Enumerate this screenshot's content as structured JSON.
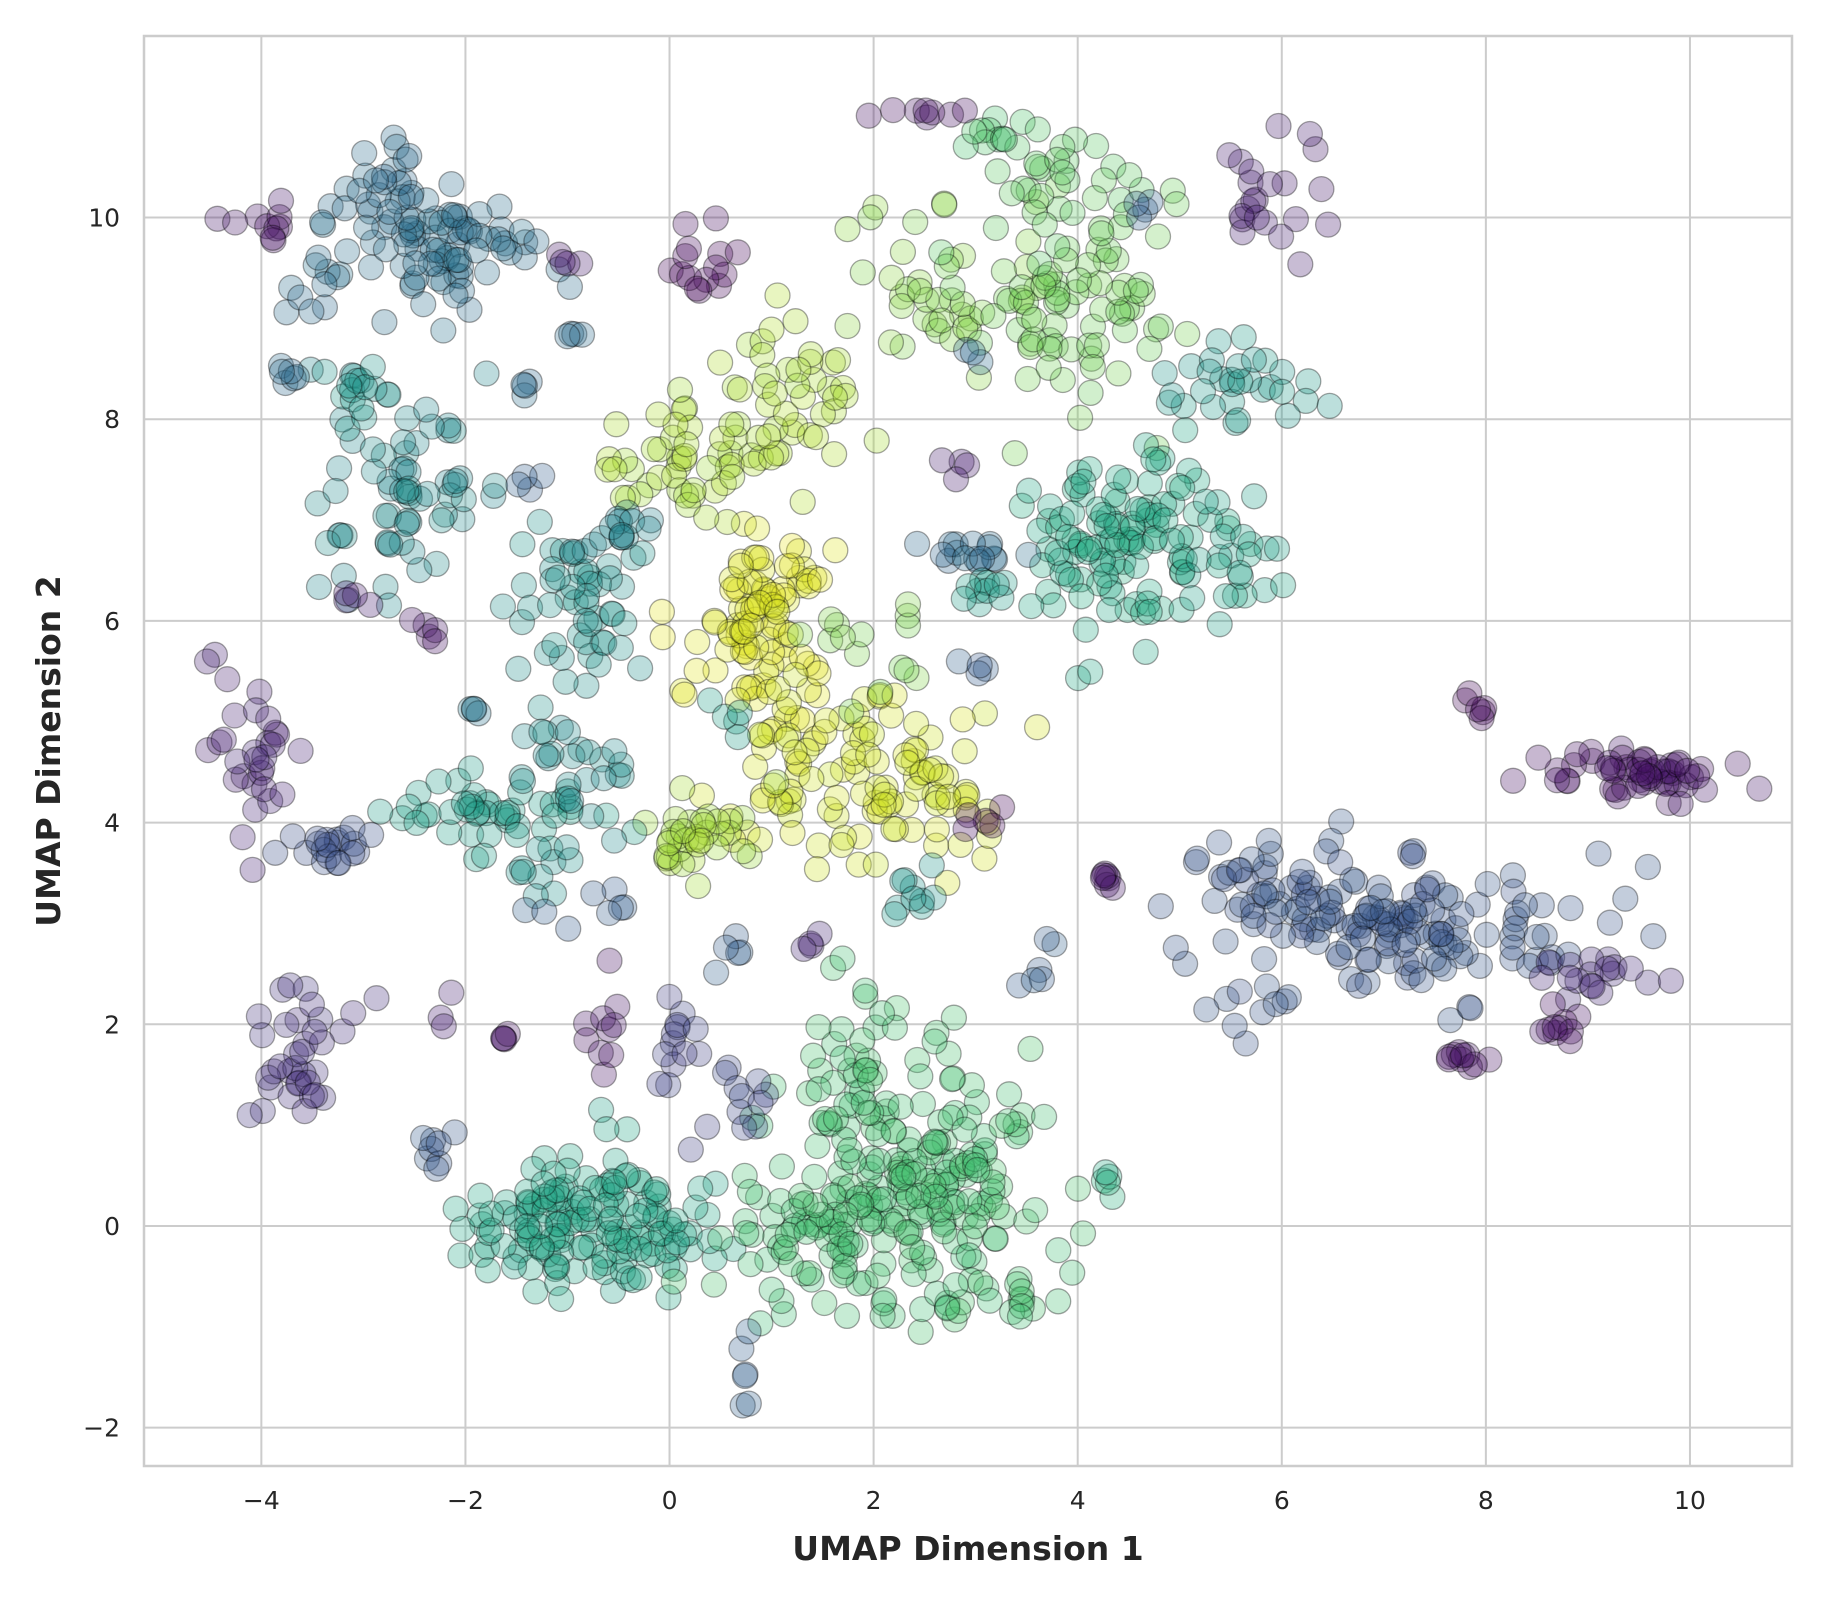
{
  "chart_data": {
    "type": "scatter",
    "title": "",
    "xlabel": "UMAP Dimension 1",
    "ylabel": "UMAP Dimension 2",
    "xlim": [
      -5.15,
      11.0
    ],
    "ylim": [
      -2.38,
      11.8
    ],
    "xticks": [
      -4,
      -2,
      0,
      2,
      4,
      6,
      8,
      10
    ],
    "yticks": [
      -2,
      0,
      2,
      4,
      6,
      8,
      10
    ],
    "xtick_labels": [
      "−4",
      "−2",
      "0",
      "2",
      "4",
      "6",
      "8",
      "10"
    ],
    "ytick_labels": [
      "−2",
      "0",
      "2",
      "4",
      "6",
      "8",
      "10"
    ],
    "grid": true,
    "legend": false,
    "colormap": "viridis",
    "point_style": {
      "alpha": 0.3,
      "edgecolor": "#000000"
    },
    "clusters": [
      {
        "cx": -0.9,
        "cy": 0.05,
        "sx": 0.55,
        "sy": 0.38,
        "n": 130,
        "c": 0.58
      },
      {
        "cx": -0.05,
        "cy": 0.1,
        "sx": 0.35,
        "sy": 0.3,
        "n": 25,
        "c": 0.58
      },
      {
        "cx": 2.6,
        "cy": 0.5,
        "sx": 0.55,
        "sy": 0.6,
        "n": 180,
        "c": 0.7
      },
      {
        "cx": 1.3,
        "cy": -0.15,
        "sx": 0.5,
        "sy": 0.35,
        "n": 70,
        "c": 0.7
      },
      {
        "cx": 1.8,
        "cy": 1.6,
        "sx": 0.25,
        "sy": 0.35,
        "n": 30,
        "c": 0.7
      },
      {
        "cx": 3.2,
        "cy": -0.7,
        "sx": 0.3,
        "sy": 0.15,
        "n": 15,
        "c": 0.7
      },
      {
        "cx": 4.2,
        "cy": 0.4,
        "sx": 0.1,
        "sy": 0.1,
        "n": 5,
        "c": 0.62
      },
      {
        "cx": 7.1,
        "cy": 3.0,
        "sx": 0.8,
        "sy": 0.35,
        "n": 140,
        "c": 0.27
      },
      {
        "cx": 5.8,
        "cy": 3.4,
        "sx": 0.4,
        "sy": 0.2,
        "n": 25,
        "c": 0.27
      },
      {
        "cx": 5.7,
        "cy": 2.2,
        "sx": 0.2,
        "sy": 0.25,
        "n": 10,
        "c": 0.27
      },
      {
        "cx": 9.4,
        "cy": 4.5,
        "sx": 0.55,
        "sy": 0.12,
        "n": 55,
        "c": 0.05
      },
      {
        "cx": 7.9,
        "cy": 5.1,
        "sx": 0.07,
        "sy": 0.12,
        "n": 6,
        "c": 0.02
      },
      {
        "cx": 9.2,
        "cy": 2.45,
        "sx": 0.35,
        "sy": 0.12,
        "n": 18,
        "c": 0.12
      },
      {
        "cx": 8.8,
        "cy": 2.0,
        "sx": 0.12,
        "sy": 0.12,
        "n": 10,
        "c": 0.05
      },
      {
        "cx": 7.7,
        "cy": 1.65,
        "sx": 0.18,
        "sy": 0.06,
        "n": 10,
        "c": 0.05
      },
      {
        "cx": 0.9,
        "cy": 6.0,
        "sx": 0.35,
        "sy": 0.55,
        "n": 100,
        "c": 0.95
      },
      {
        "cx": 1.9,
        "cy": 4.5,
        "sx": 0.75,
        "sy": 0.45,
        "n": 110,
        "c": 0.93
      },
      {
        "cx": 0.3,
        "cy": 3.8,
        "sx": 0.3,
        "sy": 0.25,
        "n": 35,
        "c": 0.86
      },
      {
        "cx": 0.2,
        "cy": 7.6,
        "sx": 0.35,
        "sy": 0.3,
        "n": 45,
        "c": 0.87
      },
      {
        "cx": 1.2,
        "cy": 8.3,
        "sx": 0.35,
        "sy": 0.45,
        "n": 45,
        "c": 0.87
      },
      {
        "cx": 2.6,
        "cy": 9.2,
        "sx": 0.55,
        "sy": 0.4,
        "n": 40,
        "c": 0.82
      },
      {
        "cx": 4.0,
        "cy": 9.0,
        "sx": 0.55,
        "sy": 0.5,
        "n": 75,
        "c": 0.78
      },
      {
        "cx": 3.7,
        "cy": 10.3,
        "sx": 0.35,
        "sy": 0.35,
        "n": 30,
        "c": 0.75
      },
      {
        "cx": 3.3,
        "cy": 10.85,
        "sx": 0.2,
        "sy": 0.1,
        "n": 12,
        "c": 0.72
      },
      {
        "cx": 4.4,
        "cy": 6.8,
        "sx": 0.45,
        "sy": 0.45,
        "n": 110,
        "c": 0.6
      },
      {
        "cx": 5.4,
        "cy": 6.6,
        "sx": 0.35,
        "sy": 0.3,
        "n": 25,
        "c": 0.57
      },
      {
        "cx": 5.6,
        "cy": 8.3,
        "sx": 0.35,
        "sy": 0.25,
        "n": 30,
        "c": 0.53
      },
      {
        "cx": 2.9,
        "cy": 6.7,
        "sx": 0.35,
        "sy": 0.08,
        "n": 16,
        "c": 0.35
      },
      {
        "cx": 2.35,
        "cy": 3.2,
        "sx": 0.12,
        "sy": 0.15,
        "n": 10,
        "c": 0.52
      },
      {
        "cx": 1.9,
        "cy": 5.8,
        "sx": 0.3,
        "sy": 0.25,
        "n": 15,
        "c": 0.8
      },
      {
        "cx": -2.3,
        "cy": 9.7,
        "sx": 0.55,
        "sy": 0.35,
        "n": 85,
        "c": 0.37
      },
      {
        "cx": -2.8,
        "cy": 10.3,
        "sx": 0.2,
        "sy": 0.2,
        "n": 20,
        "c": 0.35
      },
      {
        "cx": -2.6,
        "cy": 7.2,
        "sx": 0.45,
        "sy": 0.45,
        "n": 65,
        "c": 0.47
      },
      {
        "cx": -3.0,
        "cy": 8.4,
        "sx": 0.2,
        "sy": 0.2,
        "n": 15,
        "c": 0.52
      },
      {
        "cx": -1.0,
        "cy": 6.2,
        "sx": 0.4,
        "sy": 0.4,
        "n": 50,
        "c": 0.5
      },
      {
        "cx": -0.4,
        "cy": 6.9,
        "sx": 0.25,
        "sy": 0.12,
        "n": 15,
        "c": 0.45
      },
      {
        "cx": -1.6,
        "cy": 4.1,
        "sx": 0.55,
        "sy": 0.2,
        "n": 45,
        "c": 0.55
      },
      {
        "cx": -1.0,
        "cy": 4.6,
        "sx": 0.4,
        "sy": 0.3,
        "n": 25,
        "c": 0.48
      },
      {
        "cx": -1.2,
        "cy": 3.5,
        "sx": 0.2,
        "sy": 0.15,
        "n": 10,
        "c": 0.5
      },
      {
        "cx": -3.4,
        "cy": 3.75,
        "sx": 0.3,
        "sy": 0.12,
        "n": 20,
        "c": 0.25
      },
      {
        "cx": -4.1,
        "cy": 4.6,
        "sx": 0.25,
        "sy": 0.5,
        "n": 30,
        "c": 0.1
      },
      {
        "cx": -3.6,
        "cy": 1.75,
        "sx": 0.25,
        "sy": 0.4,
        "n": 35,
        "c": 0.15
      },
      {
        "cx": -3.95,
        "cy": 9.95,
        "sx": 0.15,
        "sy": 0.08,
        "n": 10,
        "c": 0.05
      },
      {
        "cx": -3.5,
        "cy": 9.3,
        "sx": 0.1,
        "sy": 0.2,
        "n": 6,
        "c": 0.35
      },
      {
        "cx": -3.7,
        "cy": 8.45,
        "sx": 0.1,
        "sy": 0.06,
        "n": 6,
        "c": 0.35
      },
      {
        "cx": 0.25,
        "cy": 9.55,
        "sx": 0.15,
        "sy": 0.2,
        "n": 15,
        "c": 0.02
      },
      {
        "cx": 2.3,
        "cy": 11.05,
        "sx": 0.3,
        "sy": 0.06,
        "n": 8,
        "c": 0.05
      },
      {
        "cx": 5.8,
        "cy": 10.1,
        "sx": 0.35,
        "sy": 0.35,
        "n": 22,
        "c": 0.08
      },
      {
        "cx": 4.6,
        "cy": 10.1,
        "sx": 0.08,
        "sy": 0.08,
        "n": 4,
        "c": 0.3
      },
      {
        "cx": -1.9,
        "cy": 5.1,
        "sx": 0.08,
        "sy": 0.08,
        "n": 4,
        "c": 0.4
      },
      {
        "cx": -2.35,
        "cy": 5.85,
        "sx": 0.08,
        "sy": 0.1,
        "n": 5,
        "c": 0.05
      },
      {
        "cx": -3.1,
        "cy": 6.3,
        "sx": 0.08,
        "sy": 0.08,
        "n": 4,
        "c": 0.08
      },
      {
        "cx": 0.1,
        "cy": 1.6,
        "sx": 0.15,
        "sy": 0.35,
        "n": 15,
        "c": 0.2
      },
      {
        "cx": 0.7,
        "cy": 1.35,
        "sx": 0.15,
        "sy": 0.2,
        "n": 10,
        "c": 0.22
      },
      {
        "cx": -0.7,
        "cy": 2.0,
        "sx": 0.15,
        "sy": 0.2,
        "n": 10,
        "c": 0.05
      },
      {
        "cx": -2.3,
        "cy": 0.65,
        "sx": 0.12,
        "sy": 0.2,
        "n": 8,
        "c": 0.28
      },
      {
        "cx": -0.8,
        "cy": 3.1,
        "sx": 0.25,
        "sy": 0.1,
        "n": 8,
        "c": 0.3
      },
      {
        "cx": 0.6,
        "cy": 2.6,
        "sx": 0.12,
        "sy": 0.12,
        "n": 5,
        "c": 0.3
      },
      {
        "cx": 0.75,
        "cy": -1.5,
        "sx": 0.06,
        "sy": 0.15,
        "n": 6,
        "c": 0.3
      },
      {
        "cx": 3.6,
        "cy": 2.6,
        "sx": 0.15,
        "sy": 0.15,
        "n": 6,
        "c": 0.3
      },
      {
        "cx": 4.3,
        "cy": 3.4,
        "sx": 0.2,
        "sy": 0.06,
        "n": 7,
        "c": 0.05
      },
      {
        "cx": 3.05,
        "cy": 4.0,
        "sx": 0.1,
        "sy": 0.08,
        "n": 5,
        "c": 0.03
      },
      {
        "cx": 2.8,
        "cy": 7.55,
        "sx": 0.1,
        "sy": 0.06,
        "n": 4,
        "c": 0.08
      },
      {
        "cx": 1.4,
        "cy": 2.75,
        "sx": 0.08,
        "sy": 0.1,
        "n": 4,
        "c": 0.1
      },
      {
        "cx": -1.6,
        "cy": 1.85,
        "sx": 0.08,
        "sy": 0.1,
        "n": 4,
        "c": 0.05
      },
      {
        "cx": -2.2,
        "cy": 2.1,
        "sx": 0.1,
        "sy": 0.1,
        "n": 3,
        "c": 0.1
      },
      {
        "cx": -1.0,
        "cy": 9.6,
        "sx": 0.1,
        "sy": 0.05,
        "n": 4,
        "c": 0.07
      },
      {
        "cx": -1.4,
        "cy": 7.4,
        "sx": 0.1,
        "sy": 0.1,
        "n": 4,
        "c": 0.3
      },
      {
        "cx": -1.4,
        "cy": 8.3,
        "sx": 0.08,
        "sy": 0.08,
        "n": 4,
        "c": 0.35
      },
      {
        "cx": -0.95,
        "cy": 8.85,
        "sx": 0.08,
        "sy": 0.06,
        "n": 4,
        "c": 0.35
      },
      {
        "cx": 3.0,
        "cy": 5.5,
        "sx": 0.1,
        "sy": 0.1,
        "n": 4,
        "c": 0.3
      },
      {
        "cx": 3.0,
        "cy": 8.65,
        "sx": 0.08,
        "sy": 0.06,
        "n": 3,
        "c": 0.35
      },
      {
        "cx": 0.6,
        "cy": 5.0,
        "sx": 0.15,
        "sy": 0.15,
        "n": 5,
        "c": 0.55
      },
      {
        "cx": 3.2,
        "cy": 6.3,
        "sx": 0.3,
        "sy": 0.1,
        "n": 10,
        "c": 0.55
      }
    ]
  }
}
